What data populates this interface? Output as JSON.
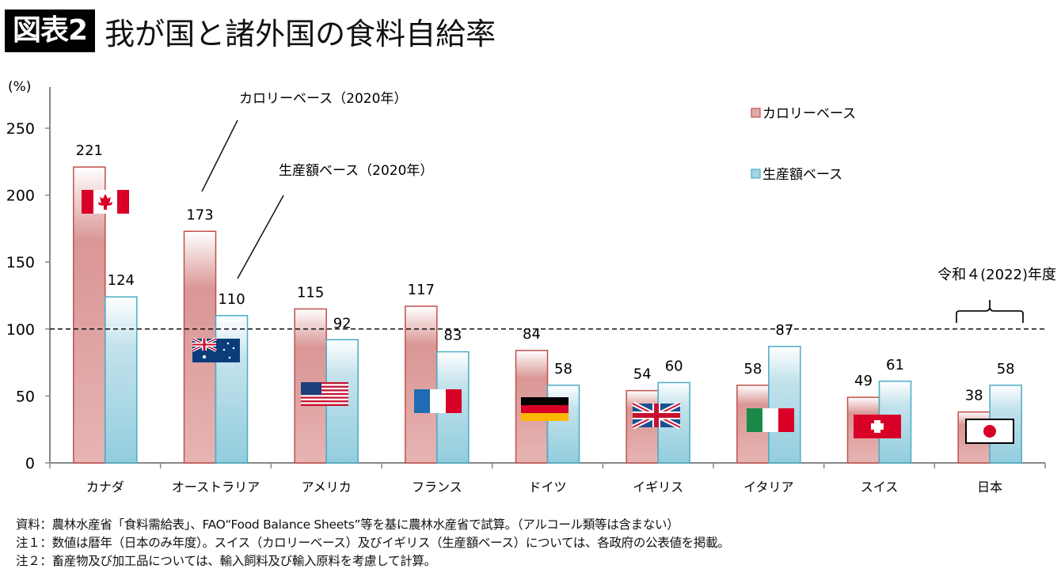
{
  "header": {
    "figure_label": "図表2",
    "title": "我が国と諸外国の食料自給率"
  },
  "chart_data": {
    "type": "bar",
    "title": "我が国と諸外国の食料自給率",
    "ylabel": "(%)",
    "xlabel": "",
    "ylim": [
      0,
      280
    ],
    "yticks": [
      0,
      50,
      100,
      150,
      200,
      250
    ],
    "grid": false,
    "reference_line": {
      "value": 100,
      "style": "dashed"
    },
    "categories": [
      "カナダ",
      "オーストラリア",
      "アメリカ",
      "フランス",
      "ドイツ",
      "イギリス",
      "イタリア",
      "スイス",
      "日本"
    ],
    "flags": [
      "canada-flag",
      "australia-flag",
      "usa-flag",
      "france-flag",
      "germany-flag",
      "uk-flag",
      "italy-flag",
      "switzerland-flag",
      "japan-flag"
    ],
    "series": [
      {
        "name": "カロリーベース",
        "color": "#e0a0a0",
        "border": "#c0504d",
        "values": [
          221,
          173,
          115,
          117,
          84,
          54,
          58,
          49,
          38
        ]
      },
      {
        "name": "生産額ベース",
        "color": "#9cd0e0",
        "border": "#4bacc6",
        "values": [
          124,
          110,
          92,
          83,
          58,
          60,
          87,
          61,
          58
        ]
      }
    ],
    "legend": {
      "placement": "top-right",
      "entries": [
        "カロリーベース",
        "生産額ベース"
      ]
    },
    "annotations": [
      {
        "text": "カロリーベース（2020年）",
        "points_to": "オーストラリア カロリーベース"
      },
      {
        "text": "生産額ベース（2020年）",
        "points_to": "オーストラリア 生産額ベース"
      },
      {
        "text": "令和４(2022)年度",
        "points_to": "日本"
      }
    ]
  },
  "notes": [
    "資料：農林水産省「食料需給表」、FAO“Food Balance Sheets”等を基に農林水産省で試算。（アルコール類等は含まない）",
    "注１：数値は暦年（日本のみ年度）。スイス（カロリーベース）及びイギリス（生産額ベース）については、各政府の公表値を掲載。",
    "注２：畜産物及び加工品については、輸入飼料及び輸入原料を考慮して計算。"
  ]
}
